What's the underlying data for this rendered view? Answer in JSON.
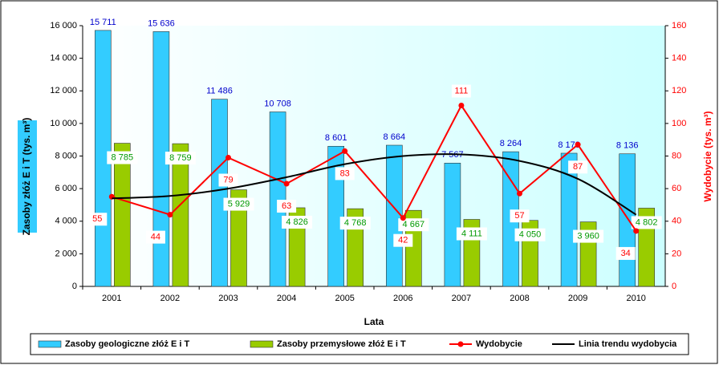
{
  "chart_data": {
    "type": "bar",
    "categories": [
      "2001",
      "2002",
      "2003",
      "2004",
      "2005",
      "2006",
      "2007",
      "2008",
      "2009",
      "2010"
    ],
    "x_label": "Lata",
    "y_label": "Zasoby złóż E i T (tys. m³)",
    "y2_label": "Wydobycie (tys. m³)",
    "ylim": [
      0,
      16000
    ],
    "yticks": [
      0,
      {
        "value": 2000,
        "label": "2 000"
      },
      {
        "value": 4000,
        "label": "4 000"
      },
      {
        "value": 6000,
        "label": "6 000"
      },
      {
        "value": 8000,
        "label": "8 000"
      },
      {
        "value": 10000,
        "label": "10 000"
      },
      {
        "value": 12000,
        "label": "12 000"
      },
      {
        "value": 14000,
        "label": "14 000"
      },
      {
        "value": 16000,
        "label": "16 000"
      }
    ],
    "y2lim": [
      0,
      160
    ],
    "y2ticks": [
      0,
      20,
      40,
      60,
      80,
      100,
      120,
      140,
      160
    ],
    "series": [
      {
        "name": "Zasoby geologiczne złóż E i T",
        "type": "bar",
        "color": "#33ccff",
        "values": [
          15711,
          15636,
          11486,
          10708,
          8601,
          8664,
          7567,
          8264,
          8173,
          8136
        ],
        "value_labels": [
          "15 711",
          "15 636",
          "11 486",
          "10 708",
          "8 601",
          "8 664",
          "7 567",
          "8 264",
          "8 173",
          "8 136"
        ]
      },
      {
        "name": "Zasoby przemysłowe złóż E i T",
        "type": "bar",
        "color": "#99cc00",
        "values": [
          8785,
          8759,
          5929,
          4826,
          4768,
          4667,
          4111,
          4050,
          3960,
          4802
        ],
        "value_labels": [
          "8 785",
          "8 759",
          "5 929",
          "4 826",
          "4 768",
          "4 667",
          "4 111",
          "4 050",
          "3 960",
          "4 802"
        ]
      },
      {
        "name": "Wydobycie",
        "type": "line",
        "axis": "y2",
        "color": "#ff0000",
        "values": [
          55,
          44,
          79,
          63,
          83,
          42,
          111,
          57,
          87,
          34
        ]
      },
      {
        "name": "Linia trendu wydobycia",
        "type": "trend",
        "axis": "y2",
        "color": "#000000",
        "values": [
          54,
          55.5,
          60,
          67,
          75,
          80,
          81,
          77,
          66,
          44
        ]
      }
    ]
  }
}
